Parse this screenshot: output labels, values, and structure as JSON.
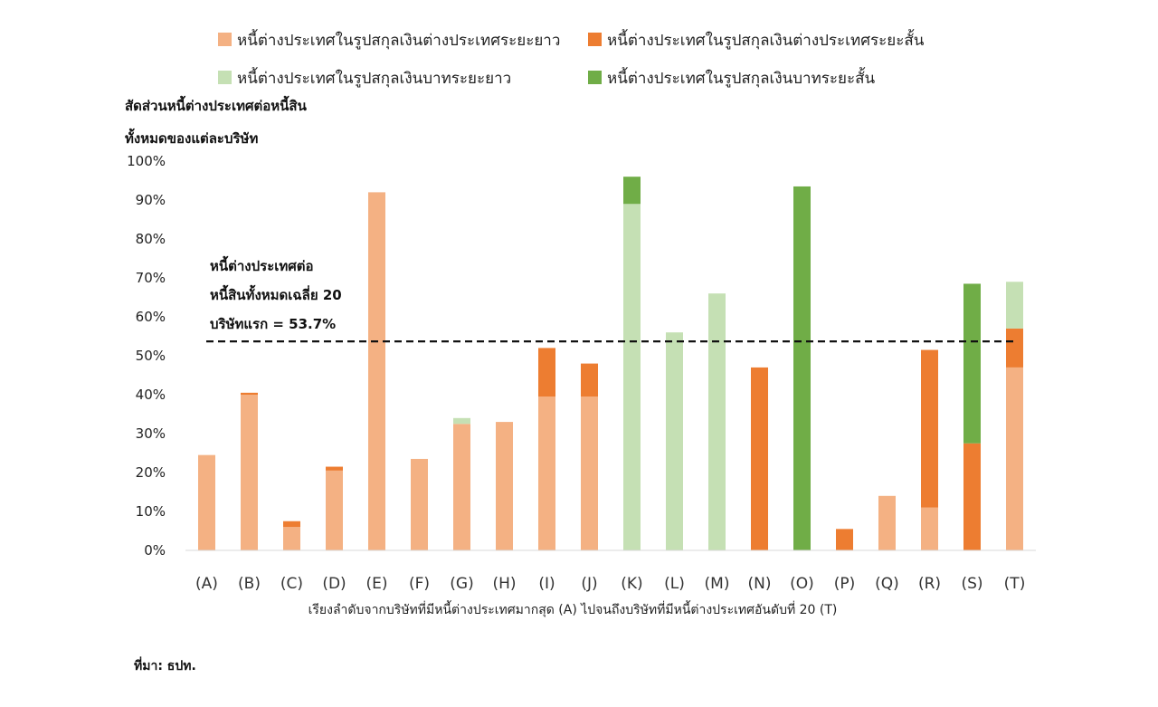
{
  "chart_data": {
    "type": "bar",
    "stacked": true,
    "ylabel_lines": [
      "สัดส่วนหนี้ต่างประเทศต่อหนี้สิน",
      "ทั้งหมดของแต่ละบริษัท"
    ],
    "xlabel": "เรียงลำดับจากบริษัทที่มีหนี้ต่างประเทศมากสุด (A) ไปจนถึงบริษัทที่มีหนี้ต่างประเทศอันดับที่ 20 (T)",
    "ylim": [
      0,
      100
    ],
    "yticks": [
      "0%",
      "10%",
      "20%",
      "30%",
      "40%",
      "50%",
      "60%",
      "70%",
      "80%",
      "90%",
      "100%"
    ],
    "categories": [
      "(A)",
      "(B)",
      "(C)",
      "(D)",
      "(E)",
      "(F)",
      "(G)",
      "(H)",
      "(I)",
      "(J)",
      "(K)",
      "(L)",
      "(M)",
      "(N)",
      "(O)",
      "(P)",
      "(Q)",
      "(R)",
      "(S)",
      "(T)"
    ],
    "series": [
      {
        "name": "หนี้ต่างประเทศในรูปสกุลเงินต่างประเทศระยะยาว",
        "color": "#F4B183",
        "values": [
          24.5,
          40,
          6,
          20.5,
          92,
          23.5,
          32.5,
          33,
          39.5,
          39.5,
          0,
          0,
          0,
          0,
          0,
          0,
          14,
          11,
          0,
          47
        ]
      },
      {
        "name": "หนี้ต่างประเทศในรูปสกุลเงินต่างประเทศระยะสั้น",
        "color": "#ED7D31",
        "values": [
          0,
          0.5,
          1.5,
          1,
          0,
          0,
          0,
          0,
          12.5,
          8.5,
          0,
          0,
          0,
          47,
          0,
          5.5,
          0,
          40.5,
          27.5,
          10
        ]
      },
      {
        "name": "หนี้ต่างประเทศในรูปสกุลเงินบาทระยะยาว",
        "color": "#C5E0B4",
        "values": [
          0,
          0,
          0,
          0,
          0,
          0,
          1.5,
          0,
          0,
          0,
          89,
          56,
          66,
          0,
          0,
          0,
          0,
          0,
          0,
          12
        ]
      },
      {
        "name": "หนี้ต่างประเทศในรูปสกุลเงินบาทระยะสั้น",
        "color": "#70AD47",
        "values": [
          0,
          0,
          0,
          0,
          0,
          0,
          0,
          0,
          0,
          0,
          7,
          0,
          0,
          0,
          93.5,
          0,
          0,
          0,
          41,
          0
        ]
      }
    ],
    "reference_line": {
      "value": 53.7,
      "label_lines": [
        "หนี้ต่างประเทศต่อ",
        "หนี้สินทั้งหมดเฉลี่ย 20",
        "บริษัทแรก = 53.7%"
      ]
    },
    "legend_position": "top",
    "grid": false
  },
  "source": "ที่มา: ธปท."
}
